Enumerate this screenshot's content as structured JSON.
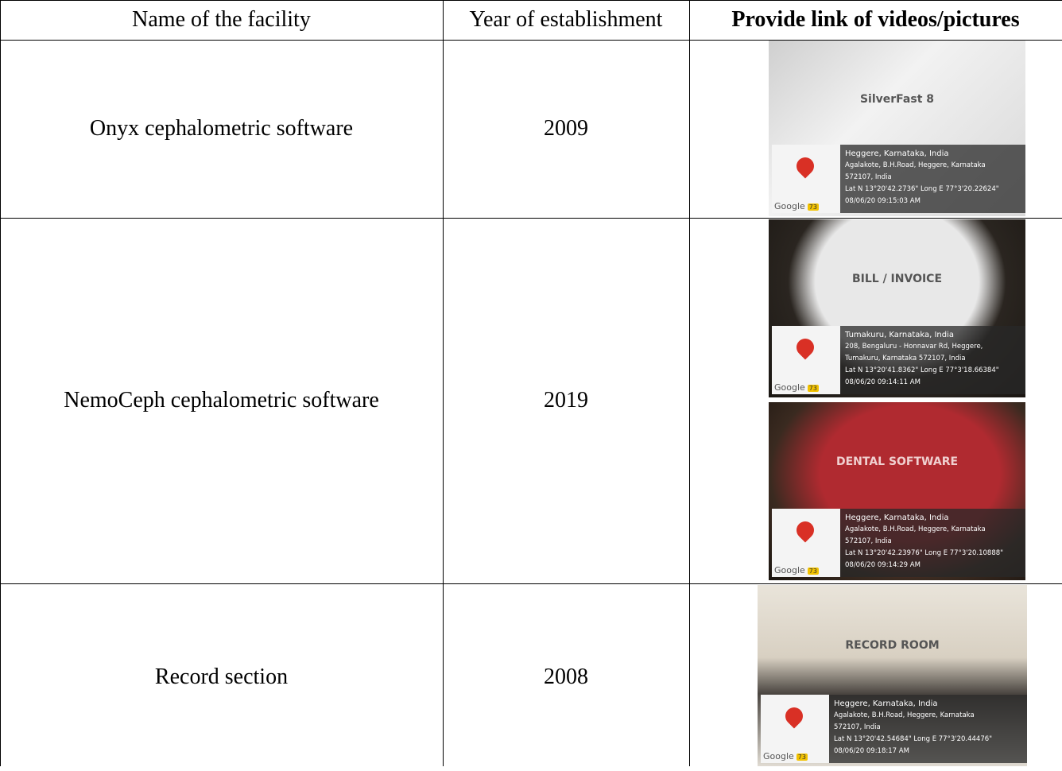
{
  "table": {
    "headers": [
      "Name of the facility",
      "Year of establishment",
      "Provide link of videos/pictures"
    ],
    "rows": [
      {
        "facility": "Onyx cephalometric software",
        "year": 2009,
        "photos": [
          {
            "scene": "SilverFast 8",
            "lines": [
              "Heggere, Karnataka, India",
              "Agalakote, B.H.Road, Heggere, Karnataka",
              "572107, India",
              "Lat N 13°20'42.2736\" Long E 77°3'20.22624\"",
              "08/06/20 09:15:03 AM"
            ]
          }
        ]
      },
      {
        "facility": "NemoCeph cephalometric software",
        "year": 2019,
        "photos": [
          {
            "scene": "BILL / INVOICE",
            "lines": [
              "Tumakuru, Karnataka, India",
              "208, Bengaluru - Honnavar Rd, Heggere,",
              "Tumakuru, Karnataka 572107, India",
              "Lat N 13°20'41.8362\" Long E 77°3'18.66384\"",
              "08/06/20 09:14:11 AM"
            ]
          },
          {
            "scene": "DENTAL SOFTWARE",
            "lines": [
              "Heggere, Karnataka, India",
              "Agalakote, B.H.Road, Heggere, Karnataka",
              "572107, India",
              "Lat N 13°20'42.23976\" Long E 77°3'20.10888\"",
              "08/06/20 09:14:29 AM"
            ]
          }
        ]
      },
      {
        "facility": "Record section",
        "year": 2008,
        "photos": [
          {
            "scene": "RECORD ROOM",
            "lines": [
              "Heggere, Karnataka, India",
              "Agalakote, B.H.Road, Heggere, Karnataka",
              "572107, India",
              "Lat N 13°20'42.54684\" Long E 77°3'20.44476\"",
              "08/06/20 09:18:17 AM"
            ]
          }
        ]
      }
    ],
    "badge": {
      "brand": "Google",
      "count": "73"
    }
  }
}
